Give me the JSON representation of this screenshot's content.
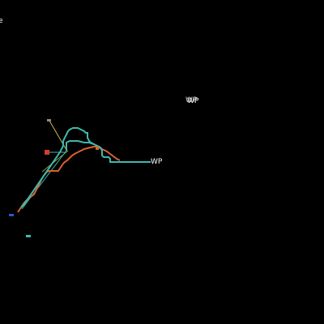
{
  "view": {
    "background": "#000000"
  },
  "labels": {
    "corner_fragment": "e",
    "waypoint_upper_a": "WP",
    "waypoint_upper_b": "WP",
    "waypoint_track_end": "WP"
  },
  "colors": {
    "track_teal": "#3fb8b0",
    "track_orange": "#d9622b",
    "line_yellow": "#c8b84a",
    "line_olive": "#9a9a3a",
    "marker_red": "#d63b2f",
    "marker_blue": "#2a57c8",
    "marker_teal": "#3fb8b0",
    "marker_grey": "#8a8a8a"
  }
}
